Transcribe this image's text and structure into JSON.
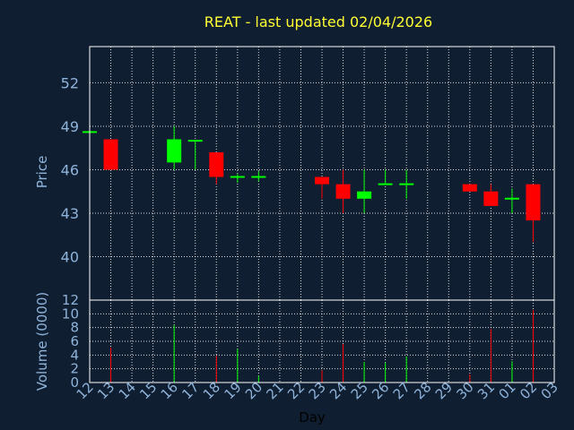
{
  "title": "REAT - last updated 02/04/2026",
  "colors": {
    "background": "#0f1e30",
    "up": "#00ff00",
    "down": "#ff0000",
    "title": "#ffff33",
    "text": "#8fb4dc"
  },
  "chart_data": [
    {
      "type": "candlestick",
      "ylabel": "Price",
      "ylim": [
        37,
        54.5
      ],
      "yticks": [
        "40",
        "43",
        "46",
        "49",
        "52"
      ],
      "ytick_values": [
        40,
        43,
        46,
        49,
        52
      ],
      "grid": true,
      "candles": [
        {
          "day": "12",
          "open": 48.6,
          "high": 48.6,
          "low": 48.6,
          "close": 48.6
        },
        {
          "day": "13",
          "open": 48.1,
          "high": 48.1,
          "low": 46.0,
          "close": 46.0
        },
        {
          "day": "16",
          "open": 46.5,
          "high": 49.0,
          "low": 46.0,
          "close": 48.1
        },
        {
          "day": "17",
          "open": 48.0,
          "high": 48.0,
          "low": 46.0,
          "close": 48.0
        },
        {
          "day": "18",
          "open": 47.2,
          "high": 47.2,
          "low": 45.0,
          "close": 45.5
        },
        {
          "day": "19",
          "open": 45.5,
          "high": 45.7,
          "low": 45.1,
          "close": 45.5
        },
        {
          "day": "20",
          "open": 45.5,
          "high": 45.9,
          "low": 45.2,
          "close": 45.5
        },
        {
          "day": "23",
          "open": 45.5,
          "high": 45.5,
          "low": 44.0,
          "close": 45.0
        },
        {
          "day": "24",
          "open": 45.0,
          "high": 46.0,
          "low": 43.0,
          "close": 44.0
        },
        {
          "day": "25",
          "open": 44.0,
          "high": 46.0,
          "low": 43.0,
          "close": 44.5
        },
        {
          "day": "26",
          "open": 45.0,
          "high": 46.0,
          "low": 45.0,
          "close": 45.0
        },
        {
          "day": "27",
          "open": 45.0,
          "high": 46.0,
          "low": 44.0,
          "close": 45.0
        },
        {
          "day": "30",
          "open": 45.0,
          "high": 45.0,
          "low": 44.5,
          "close": 44.5
        },
        {
          "day": "31",
          "open": 44.5,
          "high": 45.0,
          "low": 43.5,
          "close": 43.5
        },
        {
          "day": "01",
          "open": 44.0,
          "high": 44.7,
          "low": 43.0,
          "close": 44.0
        },
        {
          "day": "02",
          "open": 45.0,
          "high": 45.0,
          "low": 41.0,
          "close": 42.5
        }
      ]
    },
    {
      "type": "bar",
      "ylabel": "Volume (0000)",
      "ylim": [
        0,
        12
      ],
      "yticks": [
        "0",
        "2",
        "4",
        "6",
        "8",
        "10",
        "12"
      ],
      "ytick_values": [
        0,
        2,
        4,
        6,
        8,
        10,
        12
      ],
      "grid": true,
      "xlabel": "Day",
      "categories": [
        "12",
        "13",
        "14",
        "15",
        "16",
        "17",
        "18",
        "19",
        "20",
        "21",
        "22",
        "23",
        "24",
        "25",
        "26",
        "27",
        "28",
        "29",
        "30",
        "31",
        "01",
        "02",
        "03"
      ],
      "bars": [
        {
          "day": "13",
          "value": 5.1,
          "dir": "down"
        },
        {
          "day": "16",
          "value": 8.4,
          "dir": "up"
        },
        {
          "day": "18",
          "value": 3.9,
          "dir": "down"
        },
        {
          "day": "19",
          "value": 4.9,
          "dir": "up"
        },
        {
          "day": "20",
          "value": 1.0,
          "dir": "up"
        },
        {
          "day": "23",
          "value": 1.8,
          "dir": "down"
        },
        {
          "day": "24",
          "value": 5.6,
          "dir": "down"
        },
        {
          "day": "25",
          "value": 3.0,
          "dir": "up"
        },
        {
          "day": "26",
          "value": 2.9,
          "dir": "up"
        },
        {
          "day": "27",
          "value": 3.8,
          "dir": "up"
        },
        {
          "day": "30",
          "value": 1.2,
          "dir": "down"
        },
        {
          "day": "31",
          "value": 7.8,
          "dir": "down"
        },
        {
          "day": "01",
          "value": 3.1,
          "dir": "up"
        },
        {
          "day": "02",
          "value": 10.6,
          "dir": "down"
        }
      ]
    }
  ]
}
